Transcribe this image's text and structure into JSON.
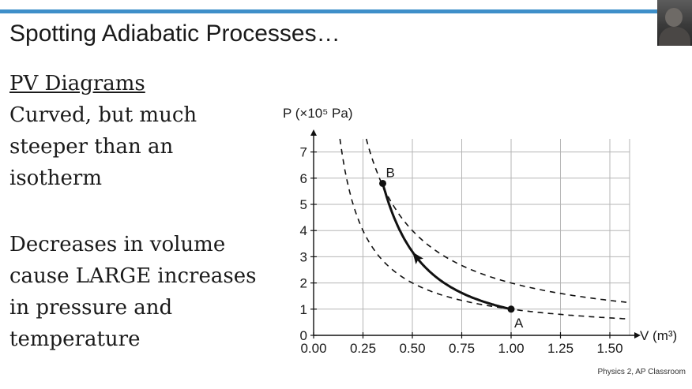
{
  "slide": {
    "title": "Spotting Adiabatic Processes…",
    "heading": "PV Diagrams",
    "text_block_1": [
      "Curved, but much",
      "steeper than an",
      "isotherm"
    ],
    "text_block_2": [
      "Decreases in volume",
      "cause LARGE increases",
      "in pressure and",
      "temperature"
    ],
    "attribution": "Physics 2, AP Classroom"
  },
  "chart_data": {
    "type": "line",
    "ylabel": "P (×10⁵ Pa)",
    "xlabel": "V (m³)",
    "xlim": [
      0,
      1.6
    ],
    "ylim": [
      0,
      7.5
    ],
    "x_ticks": [
      "0.00",
      "0.25",
      "0.50",
      "0.75",
      "1.00",
      "1.25",
      "1.50"
    ],
    "y_ticks": [
      "0",
      "1",
      "2",
      "3",
      "4",
      "5",
      "6",
      "7"
    ],
    "grid": true,
    "isotherms": [
      {
        "style": "dashed",
        "PV": 1.0
      },
      {
        "style": "dashed",
        "PV": 2.0
      }
    ],
    "process": {
      "style": "solid",
      "from": {
        "label": "A",
        "V": 1.0,
        "P": 1.0
      },
      "to": {
        "label": "B",
        "V": 0.35,
        "P": 5.8
      },
      "arrow_direction": "A to B"
    },
    "colors": {
      "line": "#111111",
      "grid": "#b5b5b5"
    }
  }
}
